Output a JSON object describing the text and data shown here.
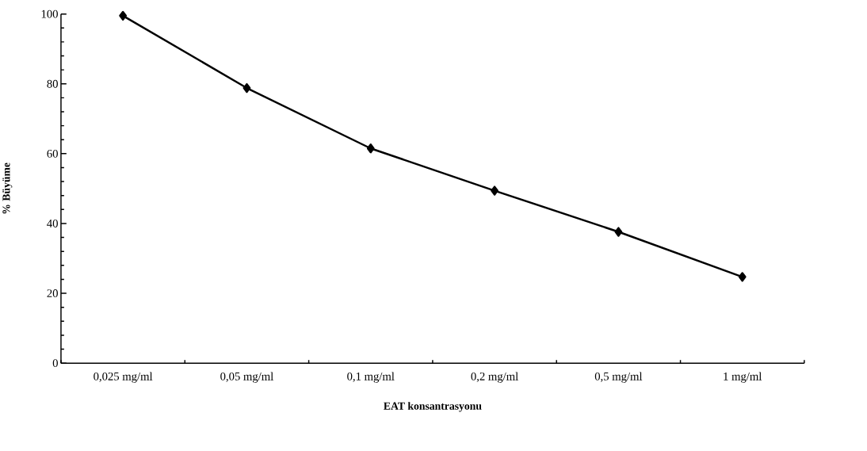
{
  "chart_data": {
    "type": "line",
    "xlabel": "EAT konsantrasyonu",
    "ylabel": "% Büyüme",
    "categories": [
      "0,025 mg/ml",
      "0,05 mg/ml",
      "0,1 mg/ml",
      "0,2 mg/ml",
      "0,5 mg/ml",
      "1 mg/ml"
    ],
    "values": [
      99.5,
      78.8,
      61.5,
      49.4,
      37.6,
      24.7
    ],
    "color": "#000000",
    "marker": "diamond",
    "line_style": "solid",
    "ylim": [
      0,
      100
    ],
    "yticks": [
      0,
      20,
      40,
      60,
      80,
      100
    ]
  }
}
